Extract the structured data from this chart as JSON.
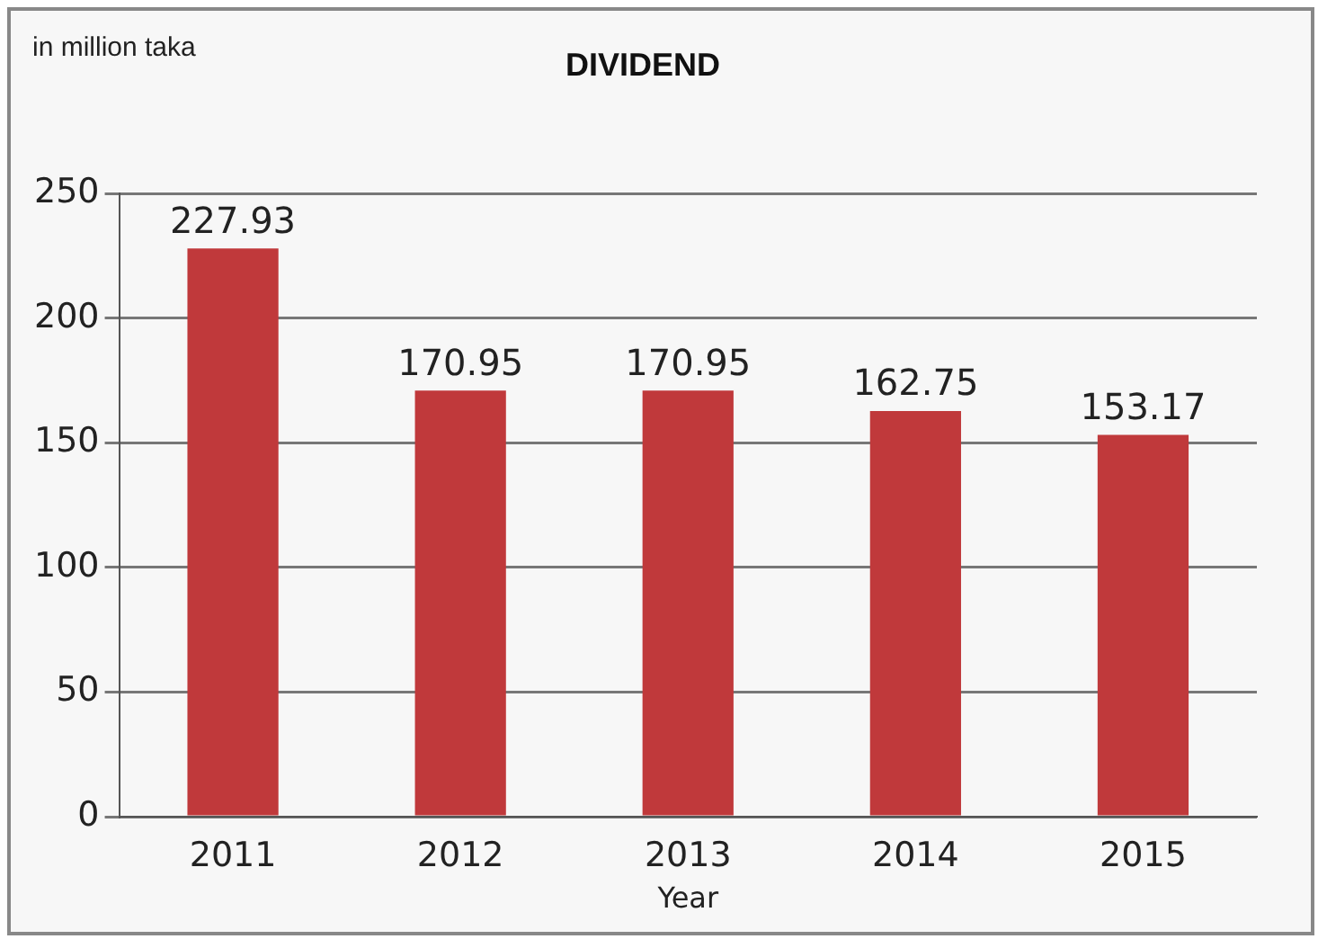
{
  "chart_data": {
    "type": "bar",
    "title": "DIVIDEND",
    "ylabel": "in million taka",
    "xlabel": "Year",
    "categories": [
      "2011",
      "2012",
      "2013",
      "2014",
      "2015"
    ],
    "values": [
      227.93,
      170.95,
      170.95,
      162.75,
      153.17
    ],
    "color": "#c0393b",
    "ylim": [
      0,
      250
    ],
    "yticks": [
      0,
      50,
      100,
      150,
      200,
      250
    ],
    "grid": "y",
    "data_labels": true,
    "legend": false
  }
}
